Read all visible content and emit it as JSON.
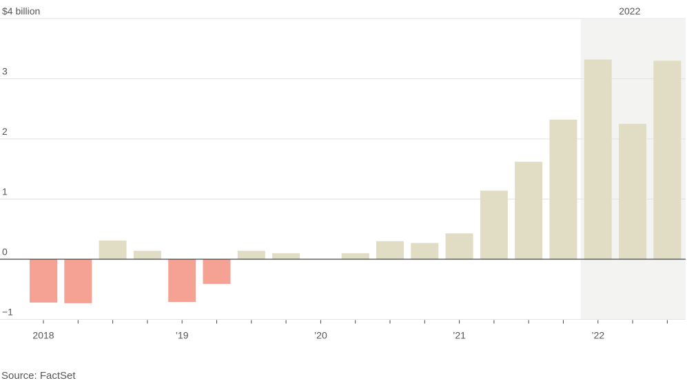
{
  "chart_data": {
    "type": "bar",
    "categories": [
      "Q1 2018",
      "Q2 2018",
      "Q3 2018",
      "Q4 2018",
      "Q1 2019",
      "Q2 2019",
      "Q3 2019",
      "Q4 2019",
      "Q1 2020",
      "Q2 2020",
      "Q3 2020",
      "Q4 2020",
      "Q1 2021",
      "Q2 2021",
      "Q3 2021",
      "Q4 2021",
      "Q1 2022",
      "Q2 2022",
      "Q3 2022"
    ],
    "values": [
      -0.72,
      -0.73,
      0.31,
      0.14,
      -0.71,
      -0.41,
      0.14,
      0.1,
      0.0,
      0.1,
      0.3,
      0.27,
      0.43,
      1.14,
      1.62,
      2.32,
      3.32,
      2.25,
      3.3
    ],
    "ylim": [
      -1,
      4
    ],
    "y_ticks": [
      {
        "value": 4,
        "label": "$4 billion"
      },
      {
        "value": 3,
        "label": "3"
      },
      {
        "value": 2,
        "label": "2"
      },
      {
        "value": 1,
        "label": "1"
      },
      {
        "value": 0,
        "label": "0"
      },
      {
        "value": -1,
        "label": "−1"
      }
    ],
    "x_tick_labels": [
      {
        "index": 0,
        "label": "2018"
      },
      {
        "index": 4,
        "label": "’19"
      },
      {
        "index": 8,
        "label": "’20"
      },
      {
        "index": 12,
        "label": "’21"
      },
      {
        "index": 16,
        "label": "’22"
      }
    ],
    "highlight": {
      "label": "2022",
      "from_index": 16,
      "to_index": 18
    },
    "colors": {
      "positive": "#e1dcc4",
      "negative": "#f5a193",
      "highlight_band": "#f3f4f2",
      "grid": "#e2e2e2",
      "zero_line": "#444444",
      "text": "#555555"
    },
    "grid": true,
    "source": "Source: FactSet"
  }
}
